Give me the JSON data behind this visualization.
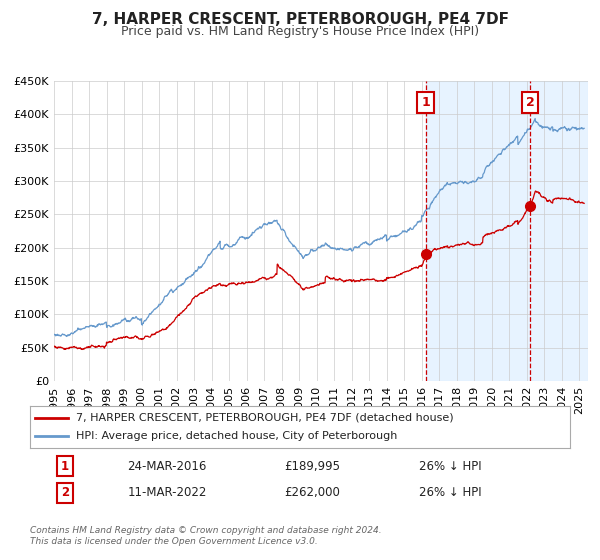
{
  "title": "7, HARPER CRESCENT, PETERBOROUGH, PE4 7DF",
  "subtitle": "Price paid vs. HM Land Registry's House Price Index (HPI)",
  "ylim": [
    0,
    450000
  ],
  "yticks": [
    0,
    50000,
    100000,
    150000,
    200000,
    250000,
    300000,
    350000,
    400000,
    450000
  ],
  "ytick_labels": [
    "£0",
    "£50K",
    "£100K",
    "£150K",
    "£200K",
    "£250K",
    "£300K",
    "£350K",
    "£400K",
    "£450K"
  ],
  "xlim_start": 1995.0,
  "xlim_end": 2025.5,
  "xtick_years": [
    1995,
    1996,
    1997,
    1998,
    1999,
    2000,
    2001,
    2002,
    2003,
    2004,
    2005,
    2006,
    2007,
    2008,
    2009,
    2010,
    2011,
    2012,
    2013,
    2014,
    2015,
    2016,
    2017,
    2018,
    2019,
    2020,
    2021,
    2022,
    2023,
    2024,
    2025
  ],
  "red_line_color": "#cc0000",
  "blue_line_color": "#6699cc",
  "blue_fill_color": "#ddeeff",
  "vline1_x": 2016.22,
  "vline2_x": 2022.19,
  "vline_color": "#cc0000",
  "marker1_x": 2016.22,
  "marker1_y": 189995,
  "marker2_x": 2022.19,
  "marker2_y": 262000,
  "legend_line1": "7, HARPER CRESCENT, PETERBOROUGH, PE4 7DF (detached house)",
  "legend_line2": "HPI: Average price, detached house, City of Peterborough",
  "table_row1": [
    "1",
    "24-MAR-2016",
    "£189,995",
    "26% ↓ HPI"
  ],
  "table_row2": [
    "2",
    "11-MAR-2022",
    "£262,000",
    "26% ↓ HPI"
  ],
  "footer": "Contains HM Land Registry data © Crown copyright and database right 2024.\nThis data is licensed under the Open Government Licence v3.0.",
  "title_fontsize": 11,
  "subtitle_fontsize": 9,
  "tick_fontsize": 8,
  "legend_fontsize": 8,
  "background_color": "#ffffff",
  "grid_color": "#cccccc"
}
